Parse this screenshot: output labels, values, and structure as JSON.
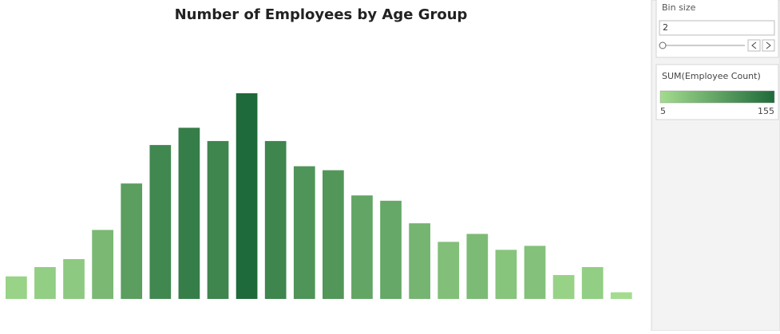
{
  "chart_data": {
    "type": "bar",
    "title": "Number of Employees by Age Group",
    "values": [
      17,
      24,
      30,
      52,
      87,
      116,
      129,
      119,
      155,
      119,
      100,
      97,
      78,
      74,
      57,
      43,
      49,
      37,
      40,
      18,
      24,
      5
    ],
    "color_range": [
      "#a3dc8e",
      "#1f6a3a"
    ]
  },
  "controls": {
    "bin_size": {
      "label": "Bin size",
      "value": "2"
    }
  },
  "legend": {
    "title": "SUM(Employee Count)",
    "min": 5,
    "max": 155
  }
}
